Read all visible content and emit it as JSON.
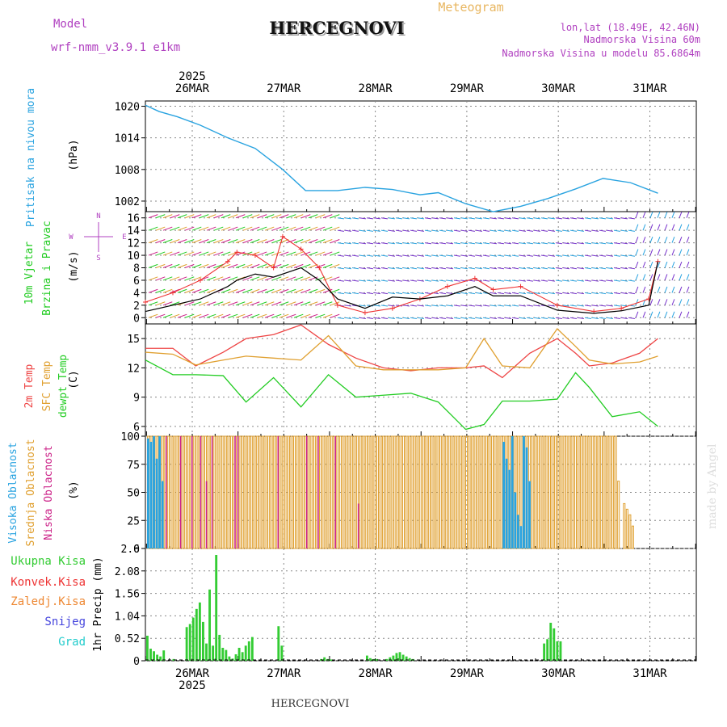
{
  "header": {
    "model_label": "Model",
    "model_name": "wrf-nmm_v3.9.1 e1km",
    "title": "HERCEGNOVI",
    "meteogram_label": "Meteogram",
    "coords": "lon,lat (18.49E, 42.46N)",
    "altitude": "Nadmorska Visina 60m",
    "model_altitude": "Nadmorska Visina u modelu 85.6864m",
    "footer_title": "HERCEGNOVI",
    "credit": "made by Angel"
  },
  "colors": {
    "pressure": "#29a3e0",
    "wind_avg": "#000000",
    "wind_gust": "#ee3333",
    "temp2m": "#ee4444",
    "sfc": "#e0a030",
    "dew": "#22cc22",
    "high_cloud": "#29a3e0",
    "mid_cloud": "#e0a030",
    "low_cloud": "#cc2288",
    "precip": "#33cc33",
    "conv": "#ee3333",
    "frozen": "#ee8833",
    "snow": "#4444dd",
    "hail": "#22cccc",
    "grid": "#888888"
  },
  "time_axis": {
    "top_year": "2025",
    "bottom_year": "2025",
    "days": [
      "26MAR",
      "27MAR",
      "28MAR",
      "29MAR",
      "30MAR",
      "31MAR"
    ]
  },
  "chart_data": [
    {
      "type": "line",
      "panel": "pressure",
      "ylabel_main": "Pritisak na nivou mora",
      "unit": "(hPa)",
      "ylim": [
        1000,
        1021
      ],
      "yticks": [
        "1020",
        "1014",
        "1008",
        "1002"
      ],
      "x_day": [
        0,
        0.15,
        0.35,
        0.6,
        0.9,
        1.2,
        1.5,
        1.75,
        2.1,
        2.4,
        2.7,
        3.0,
        3.2,
        3.5,
        3.8,
        4.1,
        4.4,
        4.7,
        5.0,
        5.3,
        5.6
      ],
      "values": [
        1020.2,
        1019,
        1018,
        1016.4,
        1014,
        1012,
        1008,
        1004,
        1004,
        1004.6,
        1004.2,
        1003.2,
        1003.6,
        1001.5,
        1000,
        1001,
        1002.5,
        1004.3,
        1006.3,
        1005.5,
        1003.5
      ]
    },
    {
      "type": "line",
      "panel": "wind",
      "ylabel_main": "10m Vjetar",
      "ylabel_sub": "Brzina i Pravac",
      "unit": "(m/s)",
      "compass": [
        "N",
        "W",
        "E",
        "S"
      ],
      "ylim": [
        -1,
        17
      ],
      "yticks": [
        "16",
        "14",
        "12",
        "10",
        "8",
        "6",
        "4",
        "2",
        "0"
      ],
      "series": [
        {
          "name": "average",
          "x_day": [
            0,
            0.3,
            0.6,
            0.9,
            1.0,
            1.2,
            1.4,
            1.7,
            1.9,
            2.1,
            2.4,
            2.7,
            3.0,
            3.3,
            3.6,
            3.8,
            4.1,
            4.5,
            4.9,
            5.2,
            5.5,
            5.6
          ],
          "values": [
            1,
            2,
            3,
            5,
            6,
            7,
            6.5,
            8,
            6,
            3,
            1.5,
            3.3,
            3,
            3.5,
            5,
            3.5,
            3.5,
            1.2,
            0.7,
            1.1,
            2,
            9
          ]
        },
        {
          "name": "gust",
          "x_day": [
            0,
            0.3,
            0.6,
            0.9,
            1.0,
            1.2,
            1.4,
            1.5,
            1.7,
            1.9,
            2.1,
            2.4,
            2.7,
            3.0,
            3.3,
            3.6,
            3.8,
            4.1,
            4.5,
            4.9,
            5.2,
            5.5,
            5.6
          ],
          "values": [
            2.5,
            4,
            6,
            9,
            10.5,
            10,
            8,
            13,
            11,
            8,
            2,
            0.8,
            1.5,
            3,
            5,
            6.3,
            4.5,
            5,
            2,
            1,
            1.5,
            3,
            9
          ]
        }
      ]
    },
    {
      "type": "line",
      "panel": "temperature",
      "ylabel": [
        "2m Temp",
        "SFC Temp",
        "dewpt Temp"
      ],
      "unit": "(C)",
      "ylim": [
        5,
        16.5
      ],
      "yticks": [
        "15",
        "12",
        "9",
        "6"
      ],
      "x_day": [
        0,
        0.3,
        0.55,
        0.85,
        1.1,
        1.4,
        1.7,
        2.0,
        2.3,
        2.6,
        2.9,
        3.2,
        3.5,
        3.7,
        3.9,
        4.2,
        4.5,
        4.7,
        4.85,
        5.1,
        5.4,
        5.6
      ],
      "series": [
        {
          "name": "2m",
          "values": [
            14,
            14,
            12.2,
            13.6,
            15,
            15.4,
            16.4,
            14.4,
            13,
            12,
            11.7,
            12,
            12,
            12.2,
            11,
            13.5,
            15,
            13.5,
            12.2,
            12.5,
            13.5,
            15
          ]
        },
        {
          "name": "sfc",
          "values": [
            13.6,
            13.4,
            12.3,
            12.8,
            13.2,
            13,
            12.8,
            15.3,
            12.2,
            11.8,
            11.8,
            11.8,
            12,
            15,
            12.2,
            12,
            16,
            14.2,
            12.8,
            12.4,
            12.6,
            13.2
          ]
        },
        {
          "name": "dew",
          "values": [
            12.8,
            11.3,
            11.3,
            11.2,
            8.5,
            11,
            8,
            11.3,
            9,
            9.2,
            9.4,
            8.5,
            5.7,
            6.2,
            8.6,
            8.6,
            8.8,
            11.5,
            10,
            7,
            7.5,
            6
          ]
        }
      ]
    },
    {
      "type": "bar",
      "panel": "cloud",
      "ylabel": [
        "Visoka Oblacnost",
        "Srednja Oblacnost",
        "Niska Oblacnost"
      ],
      "unit": "(%)",
      "ylim": [
        0,
        100
      ],
      "yticks": [
        "100",
        "75",
        "50",
        "25",
        "0"
      ],
      "high_pct": [
        98,
        95,
        100,
        80,
        100,
        60,
        0,
        0,
        0,
        0,
        0,
        0,
        0,
        0,
        0,
        0,
        0,
        0,
        0,
        0,
        0,
        0,
        0,
        0,
        0,
        0,
        0,
        0,
        0,
        0,
        0,
        0,
        0,
        0,
        0,
        0,
        0,
        0,
        0,
        0,
        0,
        0,
        0,
        0,
        0,
        0,
        0,
        0,
        0,
        0,
        0,
        0,
        0,
        0,
        0,
        0,
        0,
        0,
        0,
        0,
        0,
        0,
        0,
        0,
        0,
        0,
        0,
        0,
        0,
        0,
        0,
        0,
        0,
        0,
        0,
        0,
        0,
        0,
        0,
        0,
        0,
        0,
        0,
        0,
        0,
        0,
        0,
        0,
        0,
        0,
        0,
        0,
        0,
        0,
        0,
        0,
        0,
        0,
        0,
        0,
        0,
        0,
        0,
        0,
        0,
        0,
        0,
        0,
        0,
        0,
        0,
        0,
        0,
        0,
        0,
        0,
        0,
        0,
        0,
        0,
        0,
        0,
        0,
        0,
        95,
        80,
        70,
        100,
        50,
        30,
        20,
        100,
        90,
        60,
        0,
        0,
        0,
        0,
        0,
        0,
        0,
        0,
        0,
        0,
        0,
        0,
        0,
        0,
        0,
        0,
        0,
        0,
        0,
        0,
        0,
        0,
        0,
        0,
        0,
        0,
        0,
        0,
        0,
        0,
        0,
        0,
        0,
        0,
        0,
        0,
        0,
        0,
        0,
        0,
        0,
        0,
        0,
        0,
        0,
        0,
        0,
        0,
        0,
        0,
        0,
        0,
        0,
        0,
        0,
        0,
        0,
        0,
        0,
        0,
        0,
        0,
        0,
        0,
        0,
        0,
        0,
        0,
        0,
        0,
        0
      ],
      "mid_pct": [
        100,
        100,
        100,
        100,
        100,
        100,
        100,
        100,
        100,
        100,
        100,
        100,
        100,
        100,
        100,
        100,
        100,
        100,
        100,
        100,
        100,
        100,
        100,
        100,
        100,
        100,
        100,
        100,
        100,
        100,
        100,
        100,
        100,
        100,
        100,
        100,
        100,
        100,
        100,
        100,
        100,
        100,
        100,
        100,
        100,
        100,
        100,
        100,
        100,
        100,
        100,
        100,
        100,
        100,
        100,
        100,
        100,
        100,
        100,
        100,
        100,
        100,
        100,
        100,
        100,
        100,
        100,
        100,
        100,
        100,
        100,
        100,
        100,
        100,
        100,
        100,
        100,
        100,
        100,
        100,
        100,
        100,
        100,
        100,
        100,
        100,
        100,
        100,
        100,
        100,
        100,
        100,
        100,
        100,
        100,
        100,
        100,
        100,
        100,
        100,
        100,
        100,
        100,
        100,
        100,
        100,
        100,
        100,
        100,
        100,
        100,
        100,
        100,
        100,
        100,
        100,
        100,
        100,
        100,
        100,
        100,
        100,
        100,
        100,
        100,
        100,
        100,
        100,
        100,
        100,
        100,
        100,
        100,
        100,
        100,
        100,
        100,
        100,
        100,
        100,
        100,
        100,
        100,
        100,
        100,
        100,
        100,
        100,
        100,
        100,
        100,
        100,
        100,
        100,
        100,
        100,
        100,
        100,
        100,
        100,
        100,
        100,
        100,
        100,
        60,
        0,
        40,
        35,
        30,
        20,
        0,
        0,
        0,
        0,
        0,
        0,
        0,
        0,
        0,
        0,
        0,
        0,
        0,
        0,
        0,
        0,
        0,
        0,
        0,
        0,
        0
      ],
      "low_pct": [
        0,
        0,
        0,
        0,
        0,
        0,
        100,
        0,
        0,
        0,
        0,
        100,
        0,
        0,
        0,
        100,
        0,
        0,
        100,
        0,
        60,
        0,
        100,
        0,
        0,
        0,
        0,
        0,
        0,
        0,
        100,
        100,
        0,
        0,
        0,
        0,
        0,
        0,
        0,
        0,
        0,
        0,
        0,
        0,
        0,
        100,
        0,
        0,
        0,
        0,
        0,
        0,
        0,
        0,
        0,
        100,
        0,
        0,
        0,
        100,
        0,
        0,
        0,
        0,
        0,
        100,
        0,
        0,
        0,
        0,
        0,
        0,
        0,
        40,
        0,
        0,
        0,
        0,
        0,
        0,
        0,
        0,
        0,
        0,
        0,
        0,
        0,
        0,
        0,
        0,
        0,
        0,
        0,
        0,
        0,
        0,
        0,
        0,
        0,
        0,
        0,
        0,
        0,
        0,
        0,
        0,
        0,
        0,
        0,
        0,
        0,
        0,
        0,
        0,
        0,
        0,
        0,
        0,
        0,
        0,
        0,
        0,
        0,
        0,
        0,
        0,
        0,
        0,
        0,
        0,
        0,
        0,
        0,
        0,
        0,
        0,
        0,
        0,
        0,
        0,
        0,
        0,
        0,
        0,
        0,
        0,
        0,
        0,
        0,
        0,
        0,
        0,
        0,
        0,
        0,
        0,
        0,
        0,
        0,
        0,
        0,
        0,
        0,
        0,
        0,
        0,
        0,
        0,
        0,
        0,
        0,
        0,
        0,
        0,
        0,
        0,
        0,
        0,
        0,
        0,
        0,
        0,
        0,
        0,
        0,
        0,
        0,
        0,
        0,
        0,
        0
      ]
    },
    {
      "type": "bar",
      "panel": "precip",
      "labels": [
        "Ukupna Kisa",
        "Konvek.Kisa",
        "Zaledj.Kisa",
        "Snijeg",
        "Grad"
      ],
      "unit": "1hr Precip (mm)",
      "ylim": [
        0,
        2.6
      ],
      "yticks": [
        "2.6",
        "2.08",
        "1.56",
        "1.04",
        "0.52",
        "0"
      ],
      "hours": [
        0,
        1,
        2,
        3,
        4,
        5,
        6,
        7,
        8,
        9,
        10,
        11,
        12,
        13,
        14,
        15,
        16,
        17,
        18,
        19,
        20,
        21,
        22,
        23,
        24,
        25,
        26,
        27,
        28,
        29,
        30,
        31,
        32,
        33,
        34,
        35,
        36,
        37,
        38,
        39,
        40,
        41,
        42,
        43,
        44,
        45,
        46,
        47,
        48,
        49,
        50,
        51,
        52,
        53,
        54,
        55,
        56,
        57,
        58,
        59,
        60,
        61,
        62,
        63,
        64,
        65,
        66,
        67,
        68,
        69,
        70,
        71,
        72,
        73,
        74,
        75,
        76,
        77,
        78,
        79,
        80,
        81,
        82,
        83,
        84,
        85,
        86,
        87,
        88,
        89,
        90,
        91,
        92,
        93,
        94,
        95,
        96,
        97,
        98,
        99,
        100,
        101,
        102,
        103,
        104,
        105,
        106,
        107,
        108,
        109,
        110,
        111,
        112,
        113,
        114,
        115,
        116,
        117,
        118,
        119,
        120,
        121,
        122,
        123,
        124,
        125,
        126,
        127,
        128,
        129,
        130,
        131,
        132,
        133,
        134,
        135,
        136,
        137,
        138,
        139,
        140,
        141,
        142,
        143,
        144,
        145,
        146,
        147,
        148,
        149,
        150,
        151,
        152,
        153,
        154,
        155,
        156,
        157,
        158,
        159,
        160,
        161,
        162,
        163,
        164,
        165,
        166,
        167
      ],
      "total_mm": [
        0.58,
        0.28,
        0.22,
        0.14,
        0.1,
        0.24,
        0,
        0,
        0.04,
        0,
        0,
        0,
        0.78,
        0.85,
        1.0,
        1.2,
        1.35,
        0.9,
        0.4,
        1.65,
        0.35,
        2.45,
        0.6,
        0.3,
        0.25,
        0.1,
        0.05,
        0.15,
        0.3,
        0.2,
        0.35,
        0.45,
        0.55,
        0,
        0,
        0,
        0,
        0,
        0,
        0,
        0.8,
        0.35,
        0,
        0,
        0,
        0,
        0,
        0,
        0,
        0,
        0,
        0,
        0,
        0.04,
        0.08,
        0.04,
        0.03,
        0,
        0,
        0,
        0,
        0,
        0,
        0,
        0,
        0,
        0,
        0.12,
        0.06,
        0.04,
        0.04,
        0,
        0,
        0.04,
        0.08,
        0.12,
        0.18,
        0.2,
        0.14,
        0.1,
        0.06,
        0.04,
        0,
        0,
        0,
        0,
        0,
        0,
        0,
        0,
        0,
        0,
        0,
        0,
        0,
        0,
        0,
        0,
        0,
        0,
        0,
        0,
        0,
        0,
        0,
        0,
        0,
        0,
        0,
        0,
        0,
        0,
        0,
        0,
        0,
        0,
        0,
        0,
        0,
        0,
        0,
        0.4,
        0.5,
        0.88,
        0.75,
        0.45,
        0.45,
        0,
        0,
        0,
        0,
        0,
        0,
        0,
        0,
        0,
        0,
        0,
        0,
        0,
        0,
        0,
        0,
        0,
        0,
        0,
        0,
        0,
        0,
        0,
        0,
        0,
        0,
        0,
        0,
        0,
        0,
        0,
        0,
        0,
        0,
        0,
        0,
        0,
        0,
        0,
        0,
        0,
        0,
        0,
        0,
        0,
        0,
        0,
        0,
        0,
        0,
        0,
        0
      ]
    }
  ]
}
